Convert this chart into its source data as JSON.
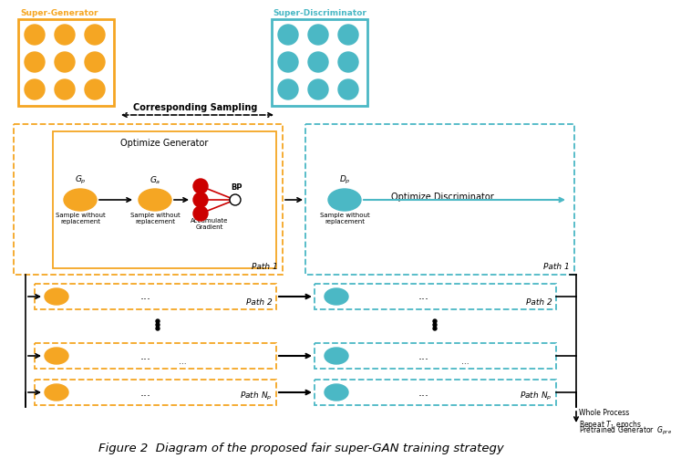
{
  "title": "Figure 2  Diagram of the proposed fair super-GAN training strategy",
  "super_gen_label": "Super-Generator",
  "super_disc_label": "Super-Discriminator",
  "corr_sampling_text": "Corresponding Sampling",
  "opt_gen_text": "Optimize Generator",
  "opt_disc_text": "Optimize Discriminator",
  "gp_label": "$G_p$",
  "ga_label": "$G_a$",
  "bp_label": "BP",
  "dp_label": "$D_p$",
  "sample_no_repl_1": "Sample without\nreplacement",
  "sample_no_repl_2": "Sample without\nreplacement",
  "sample_no_repl_3": "Sample without\nreplacement",
  "accum_grad_text": "Accumulate\nGradient",
  "path1_text": "Path 1",
  "path1_disc_text": "Path 1",
  "path2_gen_text": "Path 2",
  "path2_disc_text": "Path 2",
  "pathN_gen_text": "Path $N_p$",
  "pathN_disc_text": "Path $N_p$",
  "whole_process_text": "Whole Process\nRepeat $T_1$ epochs",
  "pretrained_gen_text": "Pretrained Generator  $G_{pre}$",
  "dots_text": "...",
  "orange_color": "#F5A623",
  "teal_color": "#4BB8C5",
  "red_color": "#CC0000",
  "black": "#000000",
  "white": "#FFFFFF",
  "bg_color": "#FFFFFF"
}
